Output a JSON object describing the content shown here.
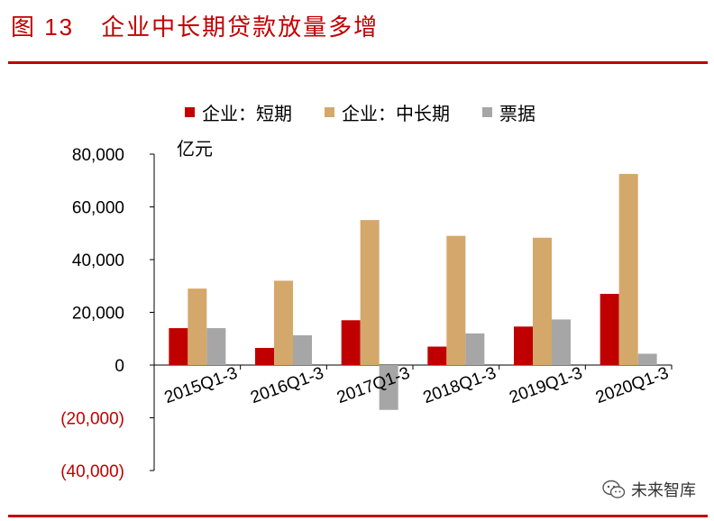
{
  "figure": {
    "number": "图 13",
    "title": "企业中长期贷款放量多增"
  },
  "watermark": {
    "text": "未来智库"
  },
  "chart_data": {
    "type": "bar",
    "unit_label": "亿元",
    "categories": [
      "2015Q1-3",
      "2016Q1-3",
      "2017Q1-3",
      "2018Q1-3",
      "2019Q1-3",
      "2020Q1-3"
    ],
    "series": [
      {
        "name": "企业：短期",
        "color": "#c00000",
        "values": [
          14000,
          6500,
          17000,
          7000,
          14600,
          27000
        ]
      },
      {
        "name": "企业：中长期",
        "color": "#d4a86a",
        "values": [
          29000,
          32000,
          55000,
          49000,
          48300,
          72500
        ]
      },
      {
        "name": "票据",
        "color": "#a6a6a6",
        "values": [
          14000,
          11300,
          -17000,
          12000,
          17300,
          4300
        ]
      }
    ],
    "yticks": [
      {
        "value": 80000,
        "label": "80,000",
        "color": "#000000"
      },
      {
        "value": 60000,
        "label": "60,000",
        "color": "#000000"
      },
      {
        "value": 40000,
        "label": "40,000",
        "color": "#000000"
      },
      {
        "value": 20000,
        "label": "20,000",
        "color": "#000000"
      },
      {
        "value": 0,
        "label": "0",
        "color": "#000000"
      },
      {
        "value": -20000,
        "label": "(20,000)",
        "color": "#c00000"
      },
      {
        "value": -40000,
        "label": "(40,000)",
        "color": "#c00000"
      }
    ],
    "ylim": [
      -40000,
      80000
    ]
  }
}
